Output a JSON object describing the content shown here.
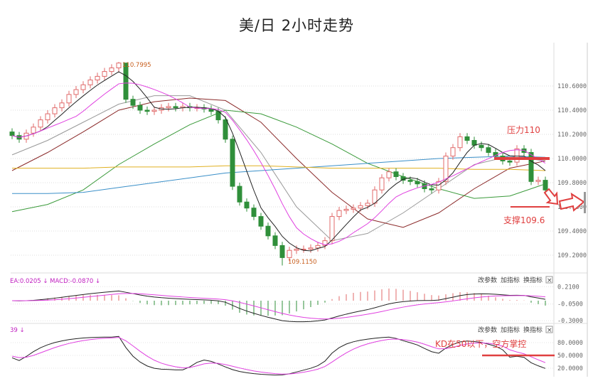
{
  "title": "美/日 2小时走势",
  "chart_data": {
    "type": "candlestick",
    "title": "美/日 2小时走势",
    "price_axis": {
      "ticks": [
        "110.6000",
        "110.4000",
        "110.2000",
        "110.0000",
        "109.8000",
        "109.6000",
        "109.4000",
        "109.2000"
      ],
      "range": [
        109.05,
        110.85
      ],
      "grid": true
    },
    "open": [
      110.22,
      110.19,
      110.16,
      110.21,
      110.26,
      110.32,
      110.37,
      110.42,
      110.46,
      110.53,
      110.57,
      110.61,
      110.65,
      110.68,
      110.72,
      110.75,
      110.79,
      110.49,
      110.44,
      110.4,
      110.39,
      110.4,
      110.42,
      110.43,
      110.42,
      110.43,
      110.42,
      110.42,
      110.41,
      110.39,
      110.32,
      110.16,
      109.77,
      109.64,
      109.59,
      109.52,
      109.44,
      109.36,
      109.28,
      109.18,
      109.24,
      109.25,
      109.25,
      109.26,
      109.28,
      109.32,
      109.52,
      109.57,
      109.58,
      109.59,
      109.61,
      109.63,
      109.74,
      109.84,
      109.89,
      109.85,
      109.82,
      109.81,
      109.79,
      109.75,
      109.74,
      109.81,
      110.02,
      110.09,
      110.18,
      110.15,
      110.11,
      110.09,
      110.05,
      110.02,
      109.98,
      109.97,
      110.08,
      110.05,
      109.81,
      109.82
    ],
    "high": [
      110.25,
      110.22,
      110.24,
      110.29,
      110.35,
      110.4,
      110.45,
      110.49,
      110.56,
      110.6,
      110.64,
      110.68,
      110.71,
      110.75,
      110.78,
      110.7995,
      110.79,
      110.52,
      110.47,
      110.43,
      110.43,
      110.45,
      110.46,
      110.46,
      110.46,
      110.46,
      110.45,
      110.45,
      110.44,
      110.42,
      110.35,
      110.19,
      109.8,
      109.67,
      109.62,
      109.55,
      109.47,
      109.39,
      109.31,
      109.27,
      109.28,
      109.28,
      109.29,
      109.31,
      109.35,
      109.55,
      109.6,
      109.61,
      109.62,
      109.64,
      109.66,
      109.77,
      109.87,
      109.92,
      109.92,
      109.88,
      109.85,
      109.84,
      109.82,
      109.78,
      109.84,
      110.05,
      110.12,
      110.21,
      110.21,
      110.18,
      110.14,
      110.12,
      110.08,
      110.05,
      110.01,
      110.11,
      110.11,
      110.08,
      109.85,
      109.85
    ],
    "low": [
      110.16,
      110.13,
      110.13,
      110.18,
      110.23,
      110.29,
      110.34,
      110.39,
      110.43,
      110.5,
      110.54,
      110.58,
      110.62,
      110.65,
      110.69,
      110.72,
      110.46,
      110.41,
      110.37,
      110.36,
      110.36,
      110.37,
      110.39,
      110.39,
      110.39,
      110.39,
      110.39,
      110.38,
      110.36,
      110.29,
      110.13,
      109.74,
      109.61,
      109.56,
      109.49,
      109.41,
      109.33,
      109.25,
      109.115,
      109.15,
      109.21,
      109.22,
      109.22,
      109.23,
      109.25,
      109.29,
      109.49,
      109.54,
      109.55,
      109.56,
      109.58,
      109.6,
      109.71,
      109.81,
      109.82,
      109.79,
      109.78,
      109.76,
      109.72,
      109.71,
      109.71,
      109.78,
      109.99,
      110.06,
      110.12,
      110.08,
      110.06,
      110.02,
      109.99,
      109.95,
      109.94,
      109.94,
      110.02,
      109.78,
      109.78,
      109.71
    ],
    "close": [
      110.19,
      110.16,
      110.21,
      110.26,
      110.32,
      110.37,
      110.42,
      110.46,
      110.53,
      110.57,
      110.61,
      110.65,
      110.68,
      110.72,
      110.75,
      110.79,
      110.49,
      110.44,
      110.4,
      110.39,
      110.4,
      110.42,
      110.43,
      110.42,
      110.43,
      110.42,
      110.42,
      110.41,
      110.39,
      110.32,
      110.16,
      109.77,
      109.64,
      109.59,
      109.52,
      109.44,
      109.36,
      109.28,
      109.18,
      109.24,
      109.25,
      109.25,
      109.26,
      109.28,
      109.32,
      109.52,
      109.57,
      109.58,
      109.59,
      109.61,
      109.63,
      109.74,
      109.84,
      109.89,
      109.85,
      109.82,
      109.81,
      109.79,
      109.75,
      109.74,
      109.81,
      110.02,
      110.09,
      110.18,
      110.15,
      110.11,
      110.09,
      110.05,
      110.02,
      109.98,
      109.97,
      110.08,
      110.05,
      109.81,
      109.82,
      109.74
    ],
    "high_label": "110.7995",
    "low_label": "109.1150",
    "ma_short": [
      {
        "period": 5,
        "color": "#222222"
      },
      {
        "period": 10,
        "color": "#e040e0"
      }
    ],
    "ma_lines": {
      "sample_every": 5,
      "lines": [
        {
          "color": "#999999",
          "values": [
            110.03,
            110.15,
            110.3,
            110.45,
            110.52,
            110.52,
            110.4,
            110.05,
            109.6,
            109.32,
            109.38,
            109.55,
            109.75,
            109.95,
            110.02,
            109.98
          ]
        },
        {
          "color": "#8b2a2a",
          "values": [
            109.9,
            110.05,
            110.22,
            110.4,
            110.47,
            110.5,
            110.48,
            110.3,
            110.0,
            109.72,
            109.5,
            109.43,
            109.55,
            109.75,
            109.92,
            109.98
          ]
        },
        {
          "color": "#3a9a3a",
          "values": [
            109.56,
            109.62,
            109.74,
            109.95,
            110.12,
            110.28,
            110.4,
            110.37,
            110.26,
            110.12,
            109.96,
            109.85,
            109.75,
            109.67,
            109.69,
            109.79
          ]
        },
        {
          "color": "#3a8fc8",
          "values": [
            109.71,
            109.71,
            109.72,
            109.76,
            109.8,
            109.84,
            109.88,
            109.9,
            109.92,
            109.94,
            109.96,
            109.98,
            110.0,
            110.01,
            110.02,
            110.01
          ]
        },
        {
          "color": "#e0b020",
          "values": [
            109.92,
            109.92,
            109.92,
            109.93,
            109.93,
            109.93,
            109.94,
            109.94,
            109.93,
            109.92,
            109.92,
            109.92,
            109.92,
            109.91,
            109.91,
            109.9
          ]
        }
      ]
    },
    "macd": {
      "label": "EA:0.0205 ↓  MACD:-0.0870 ↓",
      "ticks": [
        "0.2100",
        "-0.0500",
        "-0.3000"
      ]
    },
    "kd": {
      "label": "39 ↓",
      "ticks": [
        "80.0000",
        "50.0000",
        "20.0000"
      ]
    },
    "annotations": {
      "resistance": "压力110",
      "support": "支撑109.6",
      "kd_note": "KD在50以下，空方掌控",
      "resistance_price": 110.0,
      "support_price": 109.6,
      "kd_level": 50
    }
  },
  "toolbar": {
    "edit_params": "改参数",
    "add_indicator": "加指标",
    "switch_indicator": "换指标",
    "close": "×"
  },
  "colors": {
    "up": "#e06a6a",
    "down": "#2f8f3a",
    "annotation": "#e04040"
  }
}
